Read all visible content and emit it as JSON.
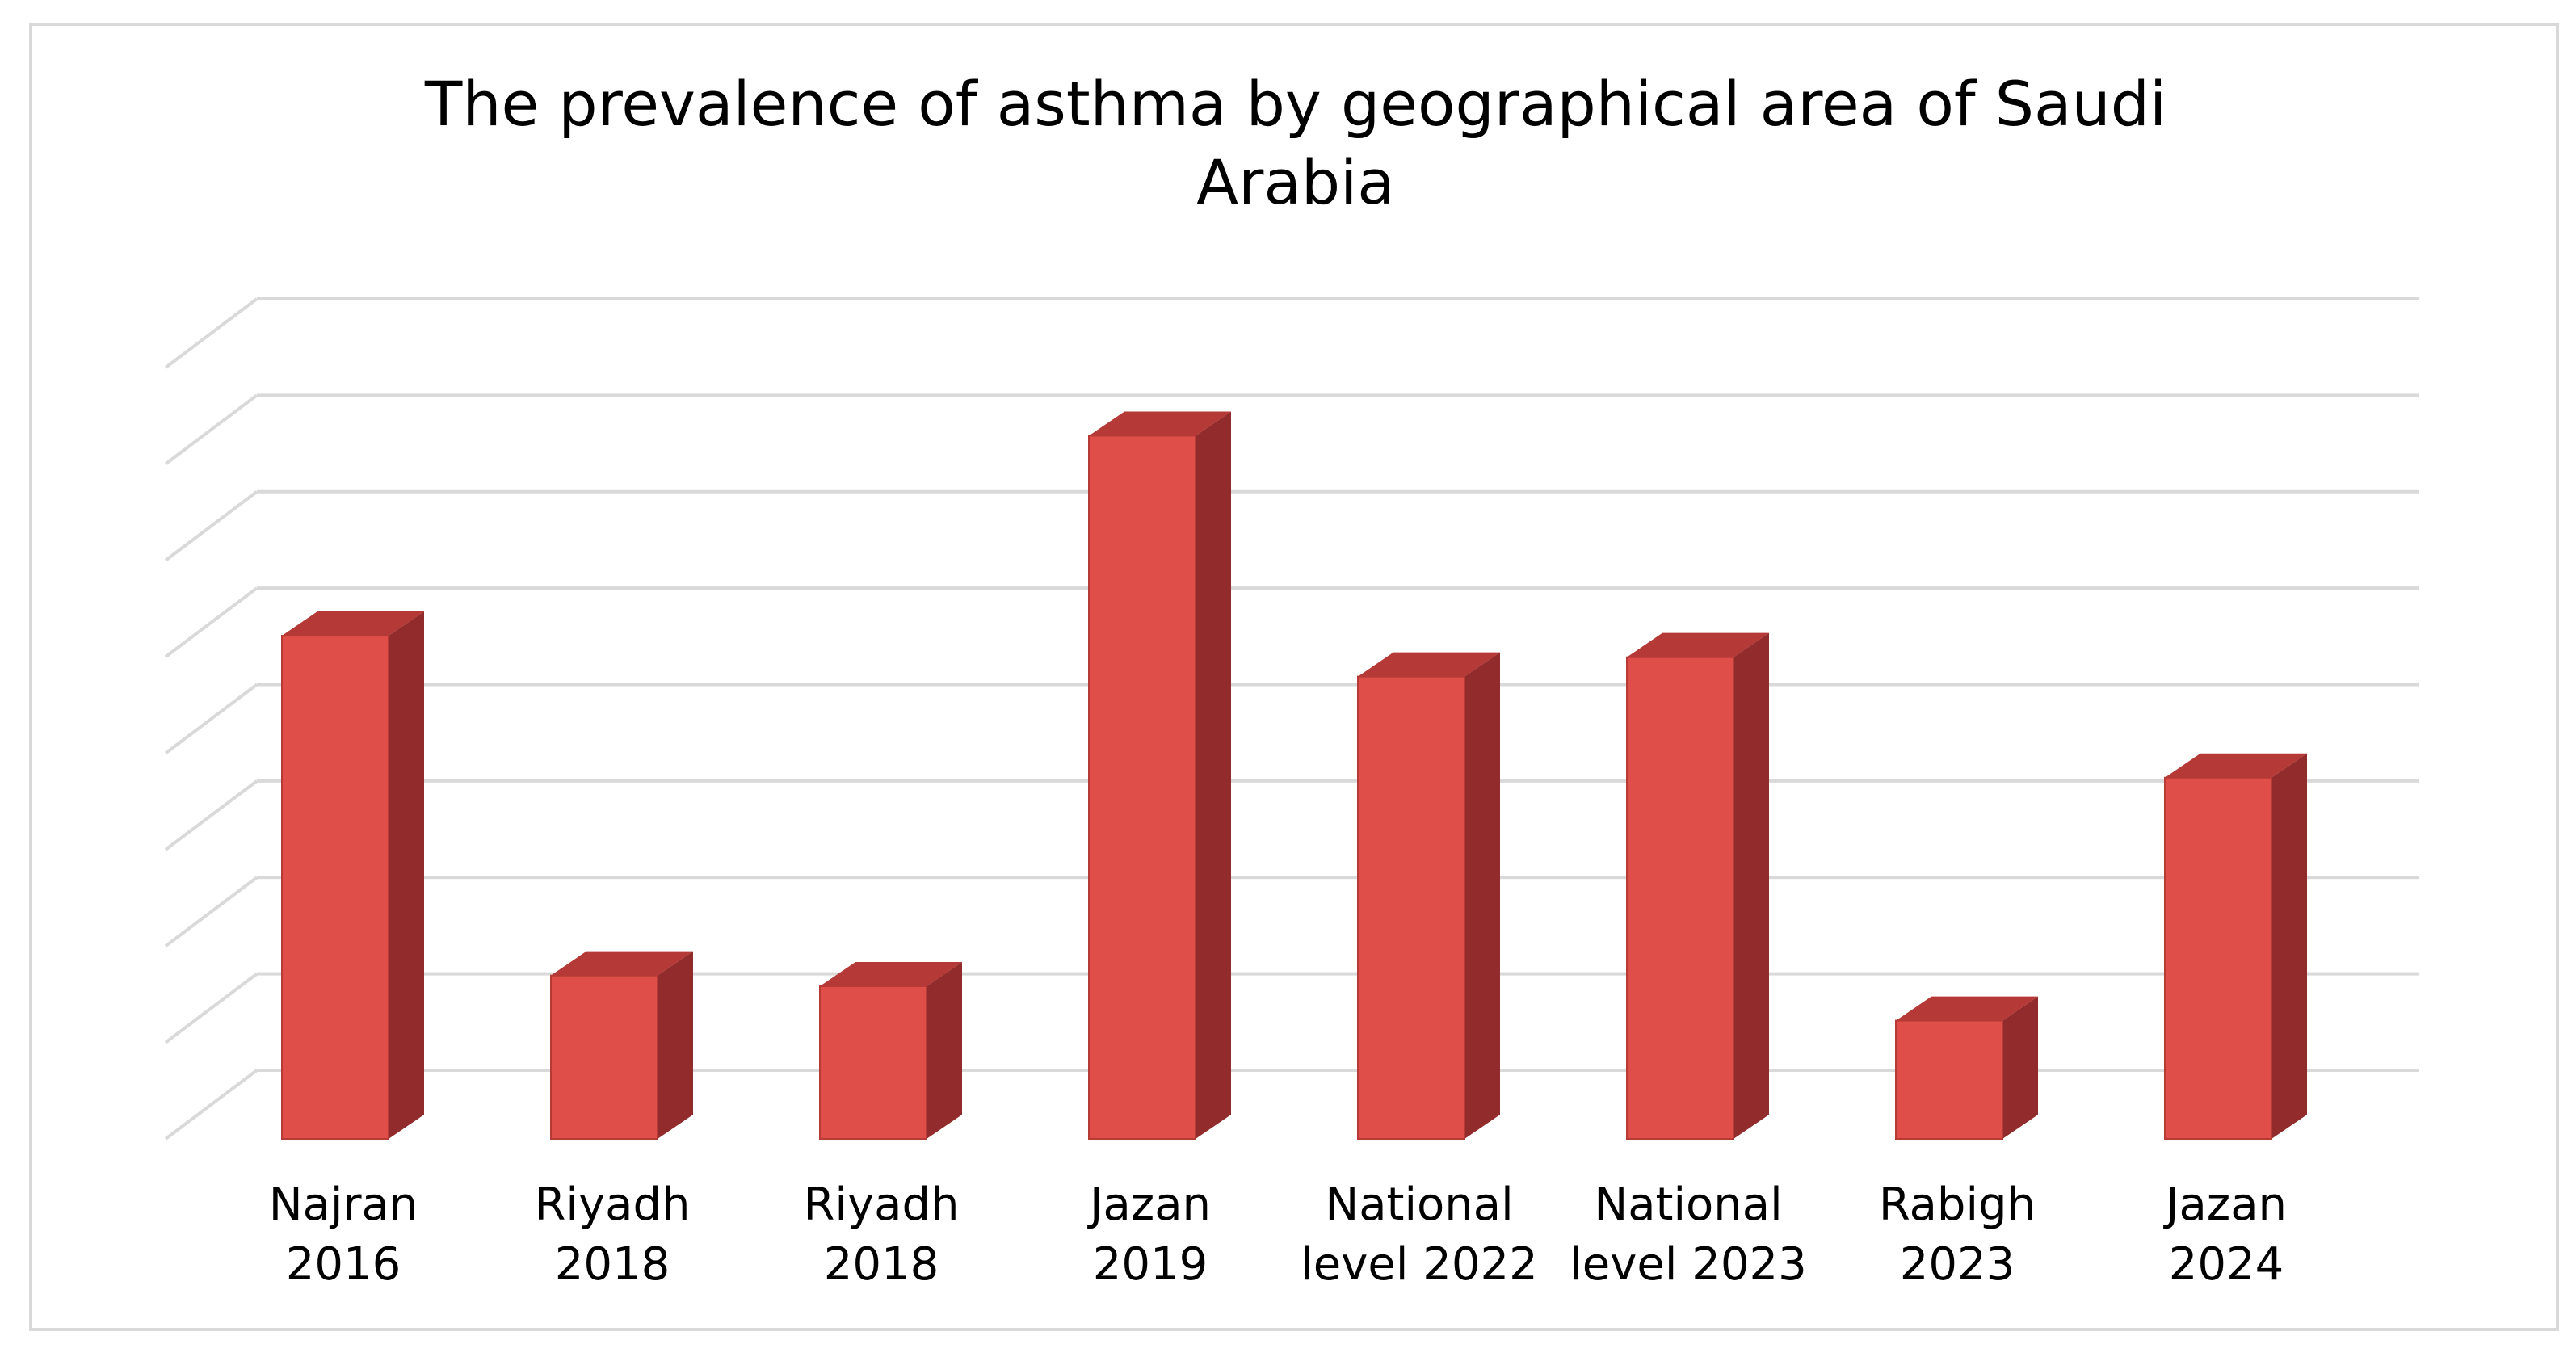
{
  "chart_data": {
    "type": "bar",
    "style": "3d-column",
    "title": "The prevalence of asthma by geographical area of Saudi Arabia",
    "title_lines": [
      "The prevalence of asthma by geographical area of Saudi",
      "Arabia"
    ],
    "xlabel": "",
    "ylabel": "",
    "categories": [
      [
        "Najran",
        "2016"
      ],
      [
        "Riyadh",
        "2018"
      ],
      [
        "Riyadh",
        "2018"
      ],
      [
        "Jazan",
        "2019"
      ],
      [
        "National",
        "level 2022"
      ],
      [
        "National",
        "level 2023"
      ],
      [
        "Rabigh",
        "2023"
      ],
      [
        "Jazan",
        "2024"
      ]
    ],
    "values": [
      23.4,
      7.6,
      7.1,
      32.7,
      21.5,
      22.4,
      5.5,
      16.8
    ],
    "ylim": [
      0,
      37
    ],
    "y_gridlines": 8,
    "y_tick_labels_shown": false,
    "grid": true,
    "legend": "none",
    "colors": {
      "bar_front": "#df4e48",
      "bar_side": "#922b2b",
      "bar_top": "#b53936",
      "bar_edge": "#b63a36",
      "gridline": "#d9d9d9",
      "text": "#000000",
      "frame": "#d9d9d9"
    }
  }
}
